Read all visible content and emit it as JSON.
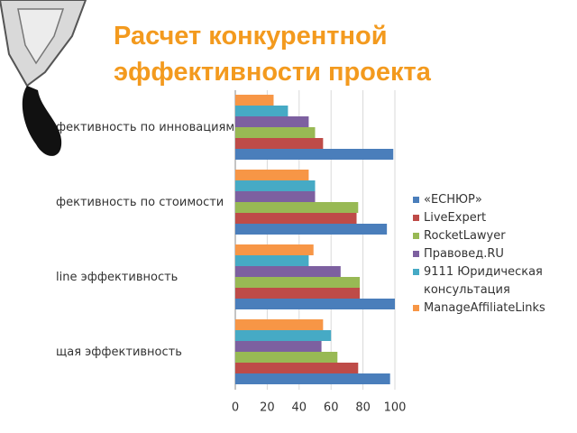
{
  "chart_data": {
    "type": "bar",
    "orientation": "horizontal",
    "title": "Расчет конкурентной эффективности проекта",
    "categories": [
      "фективность по инновациям",
      "фективность по стоимости",
      "line эффективность",
      "щая эффективность"
    ],
    "series": [
      {
        "name": "«ЕСНЮР»",
        "color": "#4a7ebb",
        "values": [
          99,
          95,
          100,
          97
        ]
      },
      {
        "name": "LiveExpert",
        "color": "#be4b48",
        "values": [
          55,
          76,
          78,
          77
        ]
      },
      {
        "name": "RocketLawyer",
        "color": "#98b954",
        "values": [
          50,
          77,
          78,
          64
        ]
      },
      {
        "name": "Правовед.RU",
        "color": "#7d60a0",
        "values": [
          46,
          50,
          66,
          54
        ]
      },
      {
        "name": "9111 Юридическая консультация",
        "color": "#46aac5",
        "values": [
          33,
          50,
          46,
          60
        ]
      },
      {
        "name": "ManageAffiliateLinks",
        "color": "#f79646",
        "values": [
          24,
          46,
          49,
          55
        ]
      }
    ],
    "xlim": [
      0,
      100
    ],
    "xticks": [
      0,
      20,
      40,
      60,
      80,
      100
    ],
    "grid": true
  }
}
